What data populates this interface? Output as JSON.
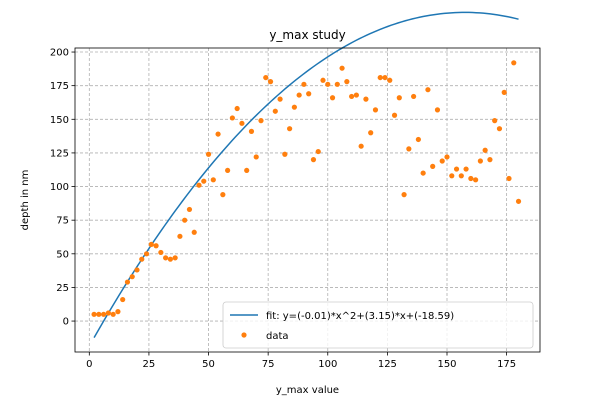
{
  "colors": {
    "fit": "#1f77b4",
    "data": "#ff7f0e",
    "grid": "#b0b0b0",
    "axes": "#000000"
  },
  "chart_data": {
    "type": "scatter",
    "title": "y_max study",
    "xlabel": "y_max value",
    "ylabel": "depth in nm",
    "xlim": [
      -6,
      189
    ],
    "ylim": [
      -23,
      203
    ],
    "xticks": [
      0,
      25,
      50,
      75,
      100,
      125,
      150,
      175
    ],
    "yticks": [
      0,
      25,
      50,
      75,
      100,
      125,
      150,
      175,
      200
    ],
    "grid": true,
    "grid_style": "dashed",
    "legend_position": "lower-right",
    "series": [
      {
        "name": "fit: y=(-0.01)*x^2+(3.15)*x+(-18.59)",
        "kind": "line",
        "coef": [
          -0.01,
          3.15,
          -18.59
        ],
        "x_range": [
          2,
          180
        ]
      },
      {
        "name": "data",
        "kind": "scatter",
        "points": [
          [
            2,
            5
          ],
          [
            4,
            5
          ],
          [
            6,
            5
          ],
          [
            8,
            6
          ],
          [
            10,
            5
          ],
          [
            12,
            7
          ],
          [
            14,
            16
          ],
          [
            16,
            29
          ],
          [
            18,
            33
          ],
          [
            20,
            38
          ],
          [
            22,
            46
          ],
          [
            24,
            50
          ],
          [
            26,
            57
          ],
          [
            28,
            56
          ],
          [
            30,
            51
          ],
          [
            32,
            47
          ],
          [
            34,
            46
          ],
          [
            36,
            47
          ],
          [
            38,
            63
          ],
          [
            40,
            75
          ],
          [
            42,
            83
          ],
          [
            44,
            66
          ],
          [
            46,
            101
          ],
          [
            48,
            104
          ],
          [
            50,
            124
          ],
          [
            52,
            105
          ],
          [
            54,
            139
          ],
          [
            56,
            94
          ],
          [
            58,
            112
          ],
          [
            60,
            151
          ],
          [
            62,
            158
          ],
          [
            64,
            147
          ],
          [
            66,
            112
          ],
          [
            68,
            141
          ],
          [
            70,
            122
          ],
          [
            72,
            149
          ],
          [
            74,
            181
          ],
          [
            76,
            178
          ],
          [
            78,
            156
          ],
          [
            80,
            165
          ],
          [
            82,
            124
          ],
          [
            84,
            143
          ],
          [
            86,
            159
          ],
          [
            88,
            168
          ],
          [
            90,
            176
          ],
          [
            92,
            169
          ],
          [
            94,
            120
          ],
          [
            96,
            126
          ],
          [
            98,
            179
          ],
          [
            100,
            176
          ],
          [
            102,
            166
          ],
          [
            104,
            176
          ],
          [
            106,
            188
          ],
          [
            108,
            178
          ],
          [
            110,
            167
          ],
          [
            112,
            168
          ],
          [
            114,
            130
          ],
          [
            116,
            165
          ],
          [
            118,
            140
          ],
          [
            120,
            157
          ],
          [
            122,
            181
          ],
          [
            124,
            181
          ],
          [
            126,
            179
          ],
          [
            128,
            153
          ],
          [
            130,
            166
          ],
          [
            132,
            94
          ],
          [
            134,
            128
          ],
          [
            136,
            167
          ],
          [
            138,
            135
          ],
          [
            140,
            110
          ],
          [
            142,
            172
          ],
          [
            144,
            115
          ],
          [
            146,
            157
          ],
          [
            148,
            119
          ],
          [
            150,
            122
          ],
          [
            152,
            108
          ],
          [
            154,
            113
          ],
          [
            156,
            108
          ],
          [
            158,
            113
          ],
          [
            160,
            106
          ],
          [
            162,
            105
          ],
          [
            164,
            119
          ],
          [
            166,
            127
          ],
          [
            168,
            120
          ],
          [
            170,
            149
          ],
          [
            172,
            143
          ],
          [
            174,
            170
          ],
          [
            176,
            106
          ],
          [
            178,
            192
          ],
          [
            180,
            89
          ]
        ]
      }
    ]
  }
}
